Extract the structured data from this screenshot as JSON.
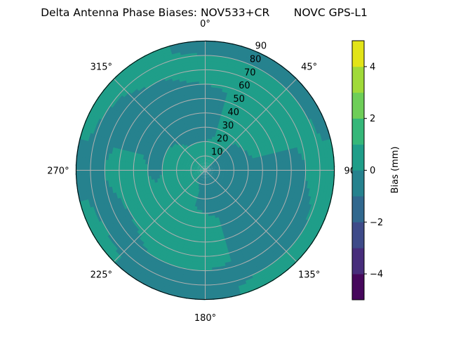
{
  "chart_data": {
    "type": "polar-contour",
    "title": "Delta Antenna Phase Biases: NOV533+CR       NOVC GPS-L1",
    "angular_direction": "clockwise",
    "zero_location": "north",
    "angular_tick_labels": [
      "0°",
      "45°",
      "90°",
      "135°",
      "180°",
      "225°",
      "270°",
      "315°"
    ],
    "radial_tick_labels": [
      "10",
      "20",
      "30",
      "40",
      "50",
      "60",
      "70",
      "80",
      "90"
    ],
    "radial_range": [
      0,
      90
    ],
    "grid": true,
    "colorbar": {
      "label": "Bias (mm)",
      "levels": [
        -5,
        -4,
        -3,
        -2,
        -1,
        0,
        1,
        2,
        3,
        4,
        5
      ],
      "tick_labels": [
        "−4",
        "−2",
        "0",
        "2",
        "4"
      ],
      "tick_values": [
        -4,
        -2,
        0,
        2,
        4
      ],
      "colors": [
        "#46085c",
        "#472d7b",
        "#3e4a89",
        "#31688e",
        "#26828e",
        "#1f9e89",
        "#35b779",
        "#6ece58",
        "#a0da39",
        "#e2e418"
      ],
      "colormap": "viridis"
    },
    "grid_azimuths_deg": [
      0,
      30,
      60,
      90,
      120,
      150,
      180,
      210,
      240,
      270,
      300,
      330
    ],
    "grid_radii": [
      5,
      15,
      25,
      35,
      45,
      55,
      65,
      75,
      85
    ],
    "values_mm": [
      [
        0.5,
        0.5,
        -0.5,
        -0.5,
        -0.5,
        -0.5,
        0.5,
        0.5,
        -0.5
      ],
      [
        0.5,
        0.5,
        0.5,
        0.5,
        0.5,
        0.5,
        0.5,
        0.5,
        -0.5
      ],
      [
        -0.5,
        -0.5,
        -0.5,
        0.5,
        0.5,
        0.5,
        0.5,
        0.5,
        -0.5
      ],
      [
        -0.5,
        -0.5,
        -0.5,
        -0.5,
        -0.5,
        -0.5,
        -0.5,
        0.5,
        0.5
      ],
      [
        -0.5,
        -0.5,
        -0.5,
        -0.5,
        -0.5,
        -0.5,
        -0.5,
        -0.5,
        0.5
      ],
      [
        -0.5,
        -0.5,
        -0.5,
        -0.5,
        -0.5,
        -0.5,
        -0.5,
        -0.5,
        0.5
      ],
      [
        -0.5,
        -0.5,
        -0.5,
        0.5,
        0.5,
        0.5,
        0.5,
        -0.5,
        -0.5
      ],
      [
        -0.5,
        0.5,
        0.5,
        0.5,
        0.5,
        0.5,
        0.5,
        -0.5,
        -0.5
      ],
      [
        0.5,
        0.5,
        0.5,
        0.5,
        0.5,
        0.5,
        -0.5,
        -0.5,
        0.5
      ],
      [
        0.5,
        0.5,
        0.5,
        -0.5,
        0.5,
        0.5,
        0.5,
        -0.5,
        -0.5
      ],
      [
        0.5,
        0.5,
        0.5,
        -0.5,
        -0.5,
        -0.5,
        -0.5,
        -0.5,
        0.5
      ],
      [
        0.5,
        0.5,
        -0.5,
        -0.5,
        -0.5,
        -0.5,
        -0.5,
        0.5,
        0.5
      ]
    ]
  }
}
